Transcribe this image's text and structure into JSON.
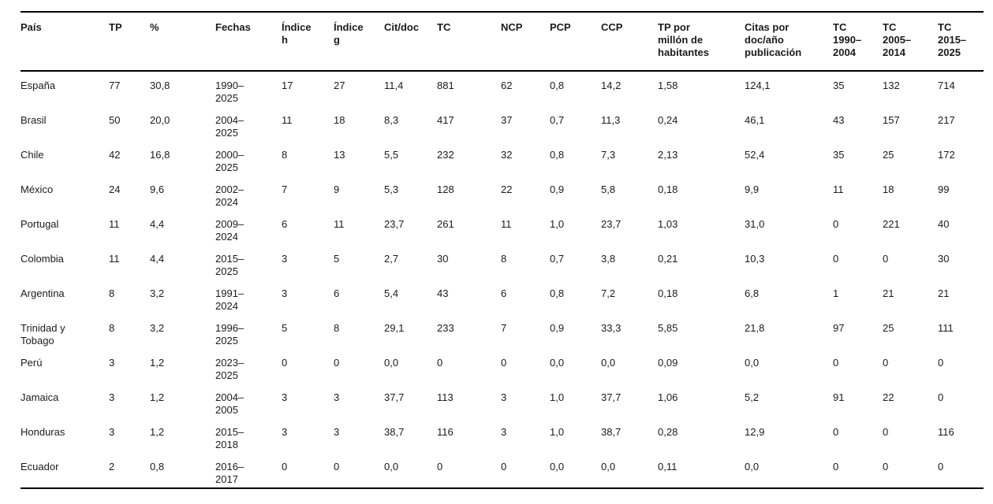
{
  "colors": {
    "background": "#ffffff",
    "text": "#1b1b1b",
    "rule": "#000000"
  },
  "table": {
    "columns": [
      {
        "key": "pais",
        "label": "País"
      },
      {
        "key": "tp",
        "label": "TP"
      },
      {
        "key": "pct",
        "label": "%"
      },
      {
        "key": "fechas",
        "label": "Fechas"
      },
      {
        "key": "indice_h",
        "label": "Índice h"
      },
      {
        "key": "indice_g",
        "label": "Índice g"
      },
      {
        "key": "cit_doc",
        "label": "Cit/doc"
      },
      {
        "key": "tc",
        "label": "TC"
      },
      {
        "key": "ncp",
        "label": "NCP"
      },
      {
        "key": "pcp",
        "label": "PCP"
      },
      {
        "key": "ccp",
        "label": "CCP"
      },
      {
        "key": "tp_por_millon",
        "label": "TP por millón de habitantes"
      },
      {
        "key": "citas_por_doc",
        "label": "Citas por doc/año publicación"
      },
      {
        "key": "tc_1990_2004",
        "label": "TC 1990–2004"
      },
      {
        "key": "tc_2005_2014",
        "label": "TC 2005–2014"
      },
      {
        "key": "tc_2015_2025",
        "label": "TC 2015–2025"
      }
    ],
    "rows": [
      [
        "España",
        "77",
        "30,8",
        "1990–2025",
        "17",
        "27",
        "11,4",
        "881",
        "62",
        "0,8",
        "14,2",
        "1,58",
        "124,1",
        "35",
        "132",
        "714"
      ],
      [
        "Brasil",
        "50",
        "20,0",
        "2004–2025",
        "11",
        "18",
        "8,3",
        "417",
        "37",
        "0,7",
        "11,3",
        "0,24",
        "46,1",
        "43",
        "157",
        "217"
      ],
      [
        "Chile",
        "42",
        "16,8",
        "2000–2025",
        "8",
        "13",
        "5,5",
        "232",
        "32",
        "0,8",
        "7,3",
        "2,13",
        "52,4",
        "35",
        "25",
        "172"
      ],
      [
        "México",
        "24",
        "9,6",
        "2002–2024",
        "7",
        "9",
        "5,3",
        "128",
        "22",
        "0,9",
        "5,8",
        "0,18",
        "9,9",
        "11",
        "18",
        "99"
      ],
      [
        "Portugal",
        "11",
        "4,4",
        "2009–2024",
        "6",
        "11",
        "23,7",
        "261",
        "11",
        "1,0",
        "23,7",
        "1,03",
        "31,0",
        "0",
        "221",
        "40"
      ],
      [
        "Colombia",
        "11",
        "4,4",
        "2015–2025",
        "3",
        "5",
        "2,7",
        "30",
        "8",
        "0,7",
        "3,8",
        "0,21",
        "10,3",
        "0",
        "0",
        "30"
      ],
      [
        "Argentina",
        "8",
        "3,2",
        "1991–2024",
        "3",
        "6",
        "5,4",
        "43",
        "6",
        "0,8",
        "7,2",
        "0,18",
        "6,8",
        "1",
        "21",
        "21"
      ],
      [
        "Trinidad y Tobago",
        "8",
        "3,2",
        "1996–2025",
        "5",
        "8",
        "29,1",
        "233",
        "7",
        "0,9",
        "33,3",
        "5,85",
        "21,8",
        "97",
        "25",
        "111"
      ],
      [
        "Perú",
        "3",
        "1,2",
        "2023–2025",
        "0",
        "0",
        "0,0",
        "0",
        "0",
        "0,0",
        "0,0",
        "0,09",
        "0,0",
        "0",
        "0",
        "0"
      ],
      [
        "Jamaica",
        "3",
        "1,2",
        "2004–2005",
        "3",
        "3",
        "37,7",
        "113",
        "3",
        "1,0",
        "37,7",
        "1,06",
        "5,2",
        "91",
        "22",
        "0"
      ],
      [
        "Honduras",
        "3",
        "1,2",
        "2015–2018",
        "3",
        "3",
        "38,7",
        "116",
        "3",
        "1,0",
        "38,7",
        "0,28",
        "12,9",
        "0",
        "0",
        "116"
      ],
      [
        "Ecuador",
        "2",
        "0,8",
        "2016–2017",
        "0",
        "0",
        "0,0",
        "0",
        "0",
        "0,0",
        "0,0",
        "0,11",
        "0,0",
        "0",
        "0",
        "0"
      ]
    ]
  }
}
